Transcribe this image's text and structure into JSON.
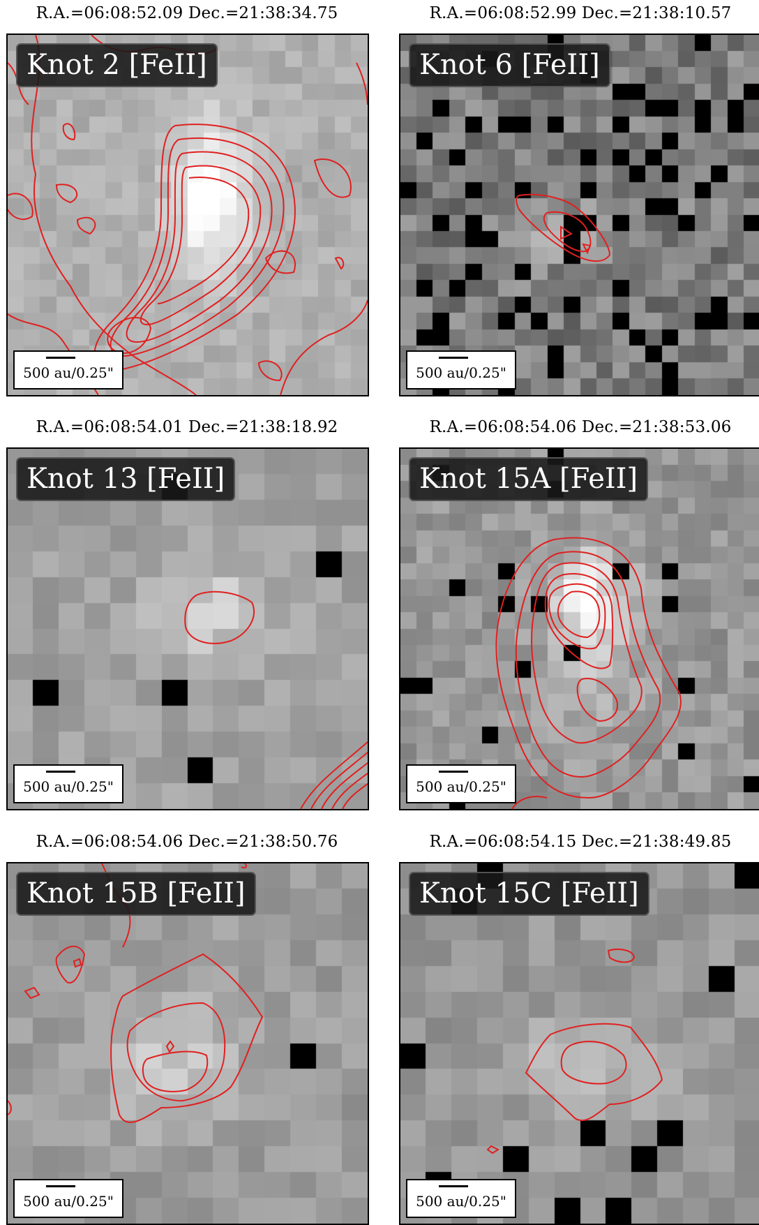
{
  "panels": [
    {
      "coords": "R.A.=06:08:52.09 Dec.=21:38:34.75",
      "label": "Knot 2 [FeII]",
      "scale_label": "500 au/0.25\"",
      "background": "bright-elongated-knot"
    },
    {
      "coords": "R.A.=06:08:52.99 Dec.=21:38:10.57",
      "label": "Knot 6 [FeII]",
      "scale_label": "500 au/0.25\"",
      "background": "noisy-faint-knot"
    },
    {
      "coords": "R.A.=06:08:54.01 Dec.=21:38:18.92",
      "label": "Knot 13 [FeII]",
      "scale_label": "500 au/0.25\"",
      "background": "coarse-faint-knot"
    },
    {
      "coords": "R.A.=06:08:54.06 Dec.=21:38:53.06",
      "label": "Knot 15A [FeII]",
      "scale_label": "500 au/0.25\"",
      "background": "elongated-knot"
    },
    {
      "coords": "R.A.=06:08:54.06 Dec.=21:38:50.76",
      "label": "Knot 15B [FeII]",
      "scale_label": "500 au/0.25\"",
      "background": "diffuse-knot"
    },
    {
      "coords": "R.A.=06:08:54.15 Dec.=21:38:49.85",
      "label": "Knot 15C [FeII]",
      "scale_label": "500 au/0.25\"",
      "background": "diffuse-knot"
    }
  ],
  "colors": {
    "contour": "#e02020",
    "label_bg": "#191919",
    "frame": "#000000"
  }
}
